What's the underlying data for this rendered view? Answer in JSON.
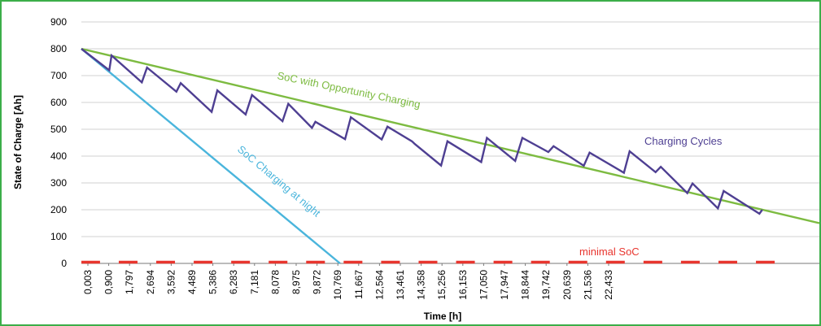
{
  "chart_data": {
    "type": "line",
    "title": "",
    "xlabel": "Time [h]",
    "ylabel": "State of Charge [Ah]",
    "x_tick_labels": [
      "0,003",
      "0,900",
      "1,797",
      "2,694",
      "3,592",
      "4,489",
      "5,386",
      "6,283",
      "7,181",
      "8,078",
      "8,975",
      "9,872",
      "10,769",
      "11,667",
      "12,564",
      "13,461",
      "14,358",
      "15,256",
      "16,153",
      "17,050",
      "17,947",
      "18,844",
      "19,742",
      "20,639",
      "21,536",
      "22,433"
    ],
    "y_ticks": [
      0,
      100,
      200,
      300,
      400,
      500,
      600,
      700,
      800,
      900
    ],
    "xlim": [
      0.003,
      25.6
    ],
    "ylim": [
      0,
      900
    ],
    "grid": "horizontal",
    "legend": "none",
    "series": [
      {
        "name": "SoC Charging at night",
        "color": "#4ab5dc",
        "points": [
          [
            0.003,
            800
          ],
          [
            8.975,
            0
          ]
        ]
      },
      {
        "name": "SoC with Opportunity Charging",
        "color": "#7dbb41",
        "points": [
          [
            0.003,
            800
          ],
          [
            25.6,
            150
          ]
        ]
      },
      {
        "name": "Charging Cycles",
        "color": "#4e3f92",
        "points": [
          [
            0.003,
            800
          ],
          [
            0.97,
            720
          ],
          [
            1.05,
            775
          ],
          [
            2.1,
            675
          ],
          [
            2.28,
            730
          ],
          [
            3.3,
            640
          ],
          [
            3.45,
            672
          ],
          [
            4.52,
            565
          ],
          [
            4.72,
            645
          ],
          [
            5.7,
            555
          ],
          [
            5.92,
            628
          ],
          [
            6.98,
            530
          ],
          [
            7.18,
            595
          ],
          [
            8.0,
            505
          ],
          [
            8.12,
            528
          ],
          [
            9.15,
            463
          ],
          [
            9.35,
            545
          ],
          [
            10.42,
            462
          ],
          [
            10.62,
            510
          ],
          [
            11.47,
            455
          ],
          [
            11.57,
            445
          ],
          [
            12.48,
            365
          ],
          [
            12.7,
            455
          ],
          [
            13.87,
            378
          ],
          [
            14.07,
            468
          ],
          [
            15.05,
            382
          ],
          [
            15.3,
            468
          ],
          [
            16.2,
            415
          ],
          [
            16.38,
            437
          ],
          [
            17.43,
            364
          ],
          [
            17.63,
            413
          ],
          [
            18.82,
            338
          ],
          [
            19.02,
            418
          ],
          [
            19.92,
            340
          ],
          [
            20.1,
            360
          ],
          [
            21.02,
            262
          ],
          [
            21.2,
            298
          ],
          [
            22.08,
            205
          ],
          [
            22.28,
            270
          ],
          [
            23.52,
            185
          ],
          [
            23.62,
            200
          ]
        ]
      },
      {
        "name": "minimal SoC",
        "color": "#e8352e",
        "segments": [
          [
            0.003,
            0.65
          ],
          [
            1.3,
            1.95
          ],
          [
            2.6,
            3.25
          ],
          [
            3.9,
            4.55
          ],
          [
            5.2,
            5.85
          ],
          [
            6.5,
            7.15
          ],
          [
            7.8,
            8.45
          ],
          [
            9.1,
            9.75
          ],
          [
            10.4,
            11.05
          ],
          [
            11.7,
            12.35
          ],
          [
            13.0,
            13.65
          ],
          [
            14.3,
            14.95
          ],
          [
            15.6,
            16.25
          ],
          [
            16.9,
            17.55
          ],
          [
            18.2,
            18.85
          ],
          [
            19.5,
            20.15
          ],
          [
            20.8,
            21.45
          ],
          [
            22.1,
            22.75
          ],
          [
            23.4,
            24.05
          ]
        ],
        "value": 0
      }
    ],
    "annotations": [
      {
        "text": "SoC with Opportunity Charging",
        "color": "#7dbb41",
        "series": "SoC with Opportunity Charging"
      },
      {
        "text": "SoC Charging at night",
        "color": "#4ab5dc",
        "series": "SoC Charging at night"
      },
      {
        "text": "Charging Cycles",
        "color": "#4e3f92",
        "series": "Charging Cycles"
      },
      {
        "text": "minimal SoC",
        "color": "#e8352e",
        "series": "minimal SoC"
      }
    ]
  }
}
